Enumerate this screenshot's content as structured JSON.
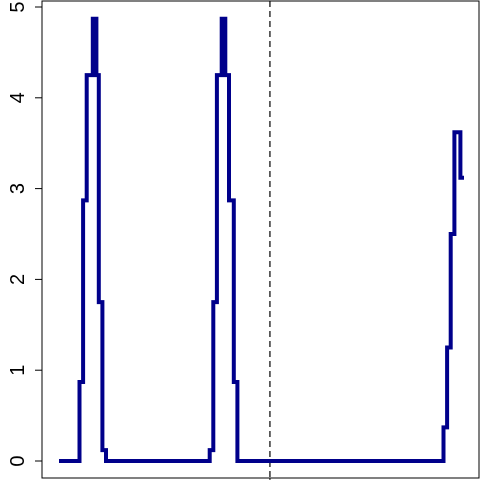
{
  "chart_data": {
    "type": "line",
    "title": "",
    "xlabel": "",
    "ylabel": "",
    "ylim": [
      0,
      5
    ],
    "yticks": [
      "0",
      "1",
      "2",
      "3",
      "4",
      "5"
    ],
    "grid": false,
    "legend": "none",
    "vline": {
      "x": 175,
      "style": "dashed",
      "color": "#000000"
    },
    "series": [
      {
        "color": "#00008b",
        "step": true,
        "points": [
          [
            0,
            0
          ],
          [
            17,
            0
          ],
          [
            17,
            0.87
          ],
          [
            20,
            0.87
          ],
          [
            20,
            2.87
          ],
          [
            23,
            2.87
          ],
          [
            23,
            4.25
          ],
          [
            28,
            4.25
          ],
          [
            28,
            4.87
          ],
          [
            31,
            4.87
          ],
          [
            31,
            4.25
          ],
          [
            33,
            4.25
          ],
          [
            33,
            1.75
          ],
          [
            36,
            1.75
          ],
          [
            36,
            0.12
          ],
          [
            39,
            0.12
          ],
          [
            39,
            0
          ],
          [
            125,
            0
          ],
          [
            125,
            0.12
          ],
          [
            128,
            0.12
          ],
          [
            128,
            1.75
          ],
          [
            131,
            1.75
          ],
          [
            131,
            4.25
          ],
          [
            135,
            4.25
          ],
          [
            135,
            4.87
          ],
          [
            138,
            4.87
          ],
          [
            138,
            4.25
          ],
          [
            141,
            4.25
          ],
          [
            141,
            2.87
          ],
          [
            145,
            2.87
          ],
          [
            145,
            0.87
          ],
          [
            148,
            0.87
          ],
          [
            148,
            0
          ],
          [
            319,
            0
          ],
          [
            319,
            0.37
          ],
          [
            322,
            0.37
          ],
          [
            322,
            1.25
          ],
          [
            325,
            1.25
          ],
          [
            325,
            2.5
          ],
          [
            328,
            2.5
          ],
          [
            328,
            3.62
          ],
          [
            333,
            3.62
          ],
          [
            333,
            3.12
          ],
          [
            336,
            3.12
          ]
        ]
      }
    ],
    "xlim": [
      -10,
      345
    ]
  }
}
